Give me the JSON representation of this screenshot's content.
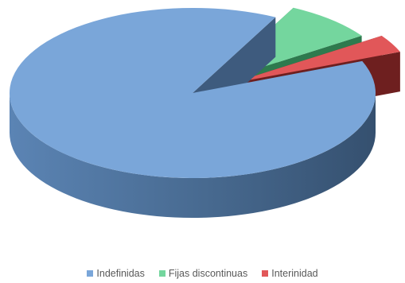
{
  "chart_data": {
    "type": "pie",
    "title": "",
    "style": "3d-exploded",
    "categories": [
      "Indefinidas",
      "Fijas discontinuas",
      "Interinidad"
    ],
    "values": [
      88.6,
      8.0,
      3.4
    ],
    "colors": {
      "Indefinidas": "#7AA6D9",
      "Fijas discontinuas": "#74D69E",
      "Interinidad": "#E15759"
    },
    "side_colors": {
      "Indefinidas": "#3E5B7E",
      "Fijas discontinuas": "#2E7A4E",
      "Interinidad": "#6E1F1F"
    },
    "legend_position": "bottom"
  }
}
